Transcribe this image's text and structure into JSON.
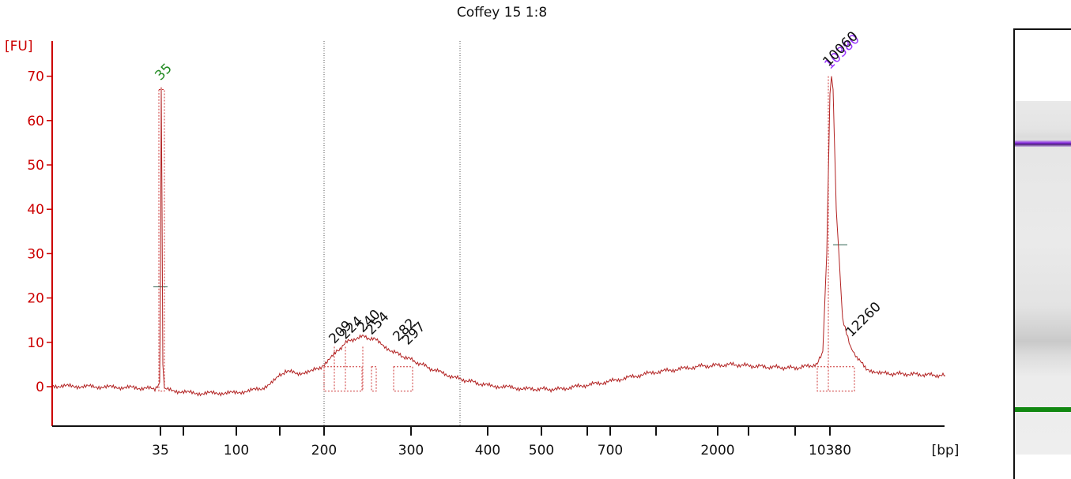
{
  "chart_data": {
    "type": "line",
    "title": "Coffey 15 1:8",
    "ylabel": "[FU]",
    "xlabel": "[bp]",
    "ylim": [
      -9.5,
      78
    ],
    "yticks": [
      0,
      10,
      20,
      30,
      40,
      50,
      60,
      70
    ],
    "xaxis_scale": "nonlinear sizing ladder (migration-time axis)",
    "xtick_labels": [
      "35",
      "100",
      "200",
      "300",
      "400",
      "500",
      "700",
      "2000",
      "10380"
    ],
    "series_color": "#b22222",
    "axis_color": "#cc0000",
    "grid": false,
    "marker_peaks": [
      {
        "label": "35",
        "value": 67.5,
        "color": "#228b22",
        "role": "lower marker"
      },
      {
        "label": "10380",
        "value": 70,
        "color": "#9933ff",
        "role": "upper marker"
      }
    ],
    "peak_labels": [
      {
        "label": "209",
        "value": 8.5
      },
      {
        "label": "224",
        "value": 9.5
      },
      {
        "label": "240",
        "value": 11
      },
      {
        "label": "254",
        "value": 10.5
      },
      {
        "label": "282",
        "value": 9
      },
      {
        "label": "297",
        "value": 8.2
      },
      {
        "label": "10060",
        "value": 71
      },
      {
        "label": "12260",
        "value": 10
      }
    ],
    "regions": [
      {
        "from": "200",
        "to": "~370"
      }
    ],
    "trace": [
      {
        "x": 0,
        "y": 0.2
      },
      {
        "x": 50,
        "y": 0.0
      },
      {
        "x": 100,
        "y": -0.2
      },
      {
        "x": 130,
        "y": -0.5
      },
      {
        "x": 136,
        "y": 1
      },
      {
        "x": 137,
        "y": 20
      },
      {
        "x": 138,
        "y": 67.5
      },
      {
        "x": 139,
        "y": 40
      },
      {
        "x": 140,
        "y": 5
      },
      {
        "x": 142,
        "y": -0.6
      },
      {
        "x": 180,
        "y": -1.5
      },
      {
        "x": 230,
        "y": -1.4
      },
      {
        "x": 265,
        "y": -0.5
      },
      {
        "x": 285,
        "y": 2
      },
      {
        "x": 295,
        "y": 3.5
      },
      {
        "x": 310,
        "y": 3
      },
      {
        "x": 330,
        "y": 3.6
      },
      {
        "x": 346,
        "y": 5
      },
      {
        "x": 360,
        "y": 8
      },
      {
        "x": 376,
        "y": 10.5
      },
      {
        "x": 394,
        "y": 11.3
      },
      {
        "x": 410,
        "y": 10.5
      },
      {
        "x": 430,
        "y": 8
      },
      {
        "x": 455,
        "y": 6
      },
      {
        "x": 480,
        "y": 4
      },
      {
        "x": 510,
        "y": 2
      },
      {
        "x": 550,
        "y": 0.3
      },
      {
        "x": 600,
        "y": -0.5
      },
      {
        "x": 640,
        "y": -0.6
      },
      {
        "x": 700,
        "y": 1
      },
      {
        "x": 760,
        "y": 3.2
      },
      {
        "x": 820,
        "y": 4.6
      },
      {
        "x": 860,
        "y": 5
      },
      {
        "x": 900,
        "y": 4.5
      },
      {
        "x": 940,
        "y": 4.2
      },
      {
        "x": 968,
        "y": 5
      },
      {
        "x": 975,
        "y": 8
      },
      {
        "x": 980,
        "y": 30
      },
      {
        "x": 984,
        "y": 66
      },
      {
        "x": 986,
        "y": 70
      },
      {
        "x": 988,
        "y": 67
      },
      {
        "x": 992,
        "y": 40
      },
      {
        "x": 996,
        "y": 28
      },
      {
        "x": 1000,
        "y": 15
      },
      {
        "x": 1005,
        "y": 12
      },
      {
        "x": 1010,
        "y": 9
      },
      {
        "x": 1018,
        "y": 6.5
      },
      {
        "x": 1030,
        "y": 4
      },
      {
        "x": 1050,
        "y": 3
      },
      {
        "x": 1090,
        "y": 2.8
      },
      {
        "x": 1130,
        "y": 2.5
      }
    ]
  },
  "gel": {
    "upper_marker_color": "#8a2be2",
    "lower_marker_color": "#118811"
  }
}
